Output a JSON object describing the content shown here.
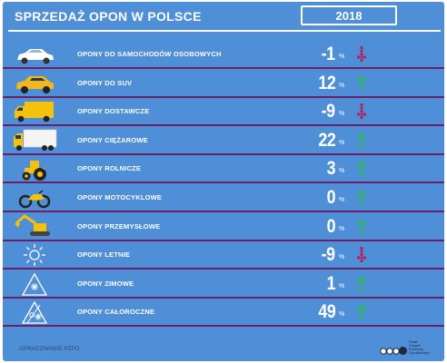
{
  "header": {
    "title": "SPRZEDAŻ OPON W POLSCE",
    "year": "2018"
  },
  "colors": {
    "background": "#4f8fd8",
    "divider": "#6a1f66",
    "up": "#2db565",
    "down": "#b52160"
  },
  "rows": [
    {
      "icon": "car-icon",
      "label": "OPONY DO SAMOCHODÓW OSOBOWYCH",
      "value": "-1",
      "unit": "%",
      "trend": "down"
    },
    {
      "icon": "suv-icon",
      "label": "OPONY DO SUV",
      "value": "12",
      "unit": "%",
      "trend": "up"
    },
    {
      "icon": "van-icon",
      "label": "OPONY DOSTAWCZE",
      "value": "-9",
      "unit": "%",
      "trend": "down"
    },
    {
      "icon": "truck-icon",
      "label": "OPONY CIĘŻAROWE",
      "value": "22",
      "unit": "%",
      "trend": "up"
    },
    {
      "icon": "tractor-icon",
      "label": "OPONY ROLNICZE",
      "value": "3",
      "unit": "%",
      "trend": "up"
    },
    {
      "icon": "motorcycle-icon",
      "label": "OPONY MOTOCYKLOWE",
      "value": "0",
      "unit": "%",
      "trend": "up"
    },
    {
      "icon": "excavator-icon",
      "label": "OPONY PRZEMYSŁOWE",
      "value": "0",
      "unit": "%",
      "trend": "up"
    },
    {
      "icon": "sun-icon",
      "label": "OPONY LETNIE",
      "value": "-9",
      "unit": "%",
      "trend": "down"
    },
    {
      "icon": "snow-mountain-icon",
      "label": "OPONY ZIMOWE",
      "value": "1",
      "unit": "%",
      "trend": "up"
    },
    {
      "icon": "all-season-icon",
      "label": "OPONY CAŁOROCZNE",
      "value": "49",
      "unit": "%",
      "trend": "up"
    }
  ],
  "footer": {
    "source": "OPRACOWANIE PZPO",
    "logo_text": [
      "Polski",
      "Związek",
      "Przemysłu",
      "Oponiarskiego"
    ]
  }
}
